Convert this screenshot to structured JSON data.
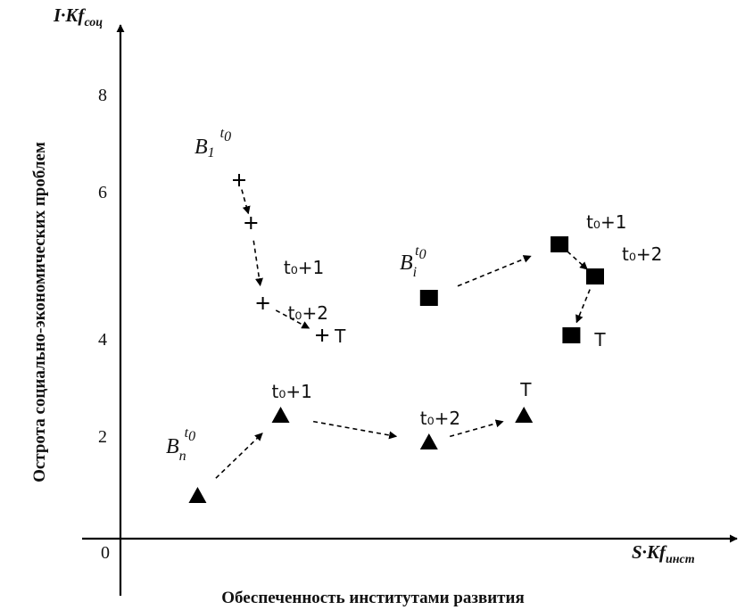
{
  "chart_data": {
    "type": "scatter",
    "title": "",
    "xlabel": "Обеспеченность институтами развития",
    "ylabel": "Острота социально-экономических проблем",
    "x_axis_symbol": {
      "main": "S·Kf",
      "sub": "инст"
    },
    "y_axis_symbol": {
      "main": "I·Kf",
      "sub": "соц"
    },
    "origin_label": "0",
    "y_ticks": [
      "2",
      "4",
      "6",
      "8"
    ],
    "ylim": [
      0,
      9.4
    ],
    "xlim": [
      0,
      10
    ],
    "grid": false,
    "series": [
      {
        "label_main": "B",
        "label_sub": "1",
        "label_sup": "t",
        "label_sup_sub": "0",
        "marker": "plus",
        "points": [
          {
            "x": 2.0,
            "y": 6.7,
            "label": ""
          },
          {
            "x": 2.2,
            "y": 5.9,
            "label": ""
          },
          {
            "x": 2.4,
            "y": 4.4,
            "label": "t₀+2"
          },
          {
            "x": 3.4,
            "y": 3.8,
            "label": "T"
          }
        ],
        "arrow_labels": [
          {
            "x": 2.75,
            "y": 4.95,
            "text": "t₀+1"
          }
        ]
      },
      {
        "label_main": "B",
        "label_sub": "i",
        "label_sup": "t",
        "label_sup_sub": "0",
        "marker": "square",
        "points": [
          {
            "x": 5.2,
            "y": 4.5,
            "label": ""
          },
          {
            "x": 7.4,
            "y": 5.5,
            "label": "t₀+1"
          },
          {
            "x": 8.0,
            "y": 4.9,
            "label": "t₀+2"
          },
          {
            "x": 7.6,
            "y": 3.8,
            "label": "T"
          }
        ]
      },
      {
        "label_main": "B",
        "label_sub": "n",
        "label_sup": "t",
        "label_sup_sub": "0",
        "marker": "triangle",
        "points": [
          {
            "x": 1.3,
            "y": 0.8,
            "label": ""
          },
          {
            "x": 2.7,
            "y": 2.3,
            "label": "t₀+1"
          },
          {
            "x": 5.2,
            "y": 1.8,
            "label": "t₀+2"
          },
          {
            "x": 6.8,
            "y": 2.3,
            "label": "T"
          }
        ]
      }
    ]
  }
}
